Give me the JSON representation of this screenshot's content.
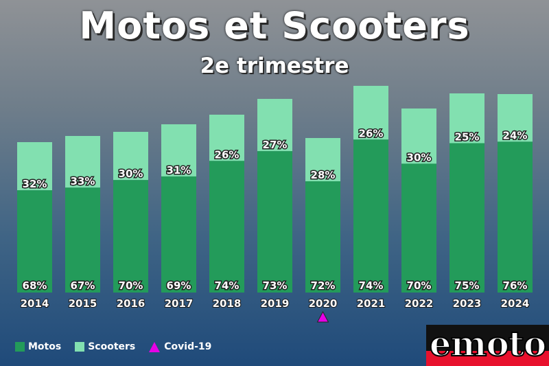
{
  "chart_data": {
    "type": "bar",
    "stacked": true,
    "title": "Motos et Scooters",
    "subtitle": "2e trimestre",
    "categories": [
      "2014",
      "2015",
      "2016",
      "2017",
      "2018",
      "2019",
      "2020",
      "2021",
      "2022",
      "2023",
      "2024"
    ],
    "totals": [
      219,
      228,
      234,
      245,
      259,
      282,
      225,
      301,
      268,
      290,
      289
    ],
    "series": [
      {
        "name": "Motos",
        "color": "#239b5a",
        "labels": [
          "68%",
          "67%",
          "70%",
          "69%",
          "74%",
          "73%",
          "72%",
          "74%",
          "70%",
          "75%",
          "76%"
        ]
      },
      {
        "name": "Scooters",
        "color": "#82e0b0",
        "labels": [
          "32%",
          "33%",
          "30%",
          "31%",
          "26%",
          "27%",
          "28%",
          "26%",
          "30%",
          "25%",
          "24%"
        ]
      }
    ],
    "annotations": [
      {
        "category": "2020",
        "marker": "triangle",
        "color": "#e600e6",
        "label": "Covid-19"
      }
    ],
    "legend_position": "bottom-left",
    "ylim": [
      0,
      301
    ],
    "grid": false
  },
  "legend": {
    "motos": "Motos",
    "scooters": "Scooters",
    "covid": "Covid-19"
  },
  "logo": {
    "text": "emoto"
  }
}
